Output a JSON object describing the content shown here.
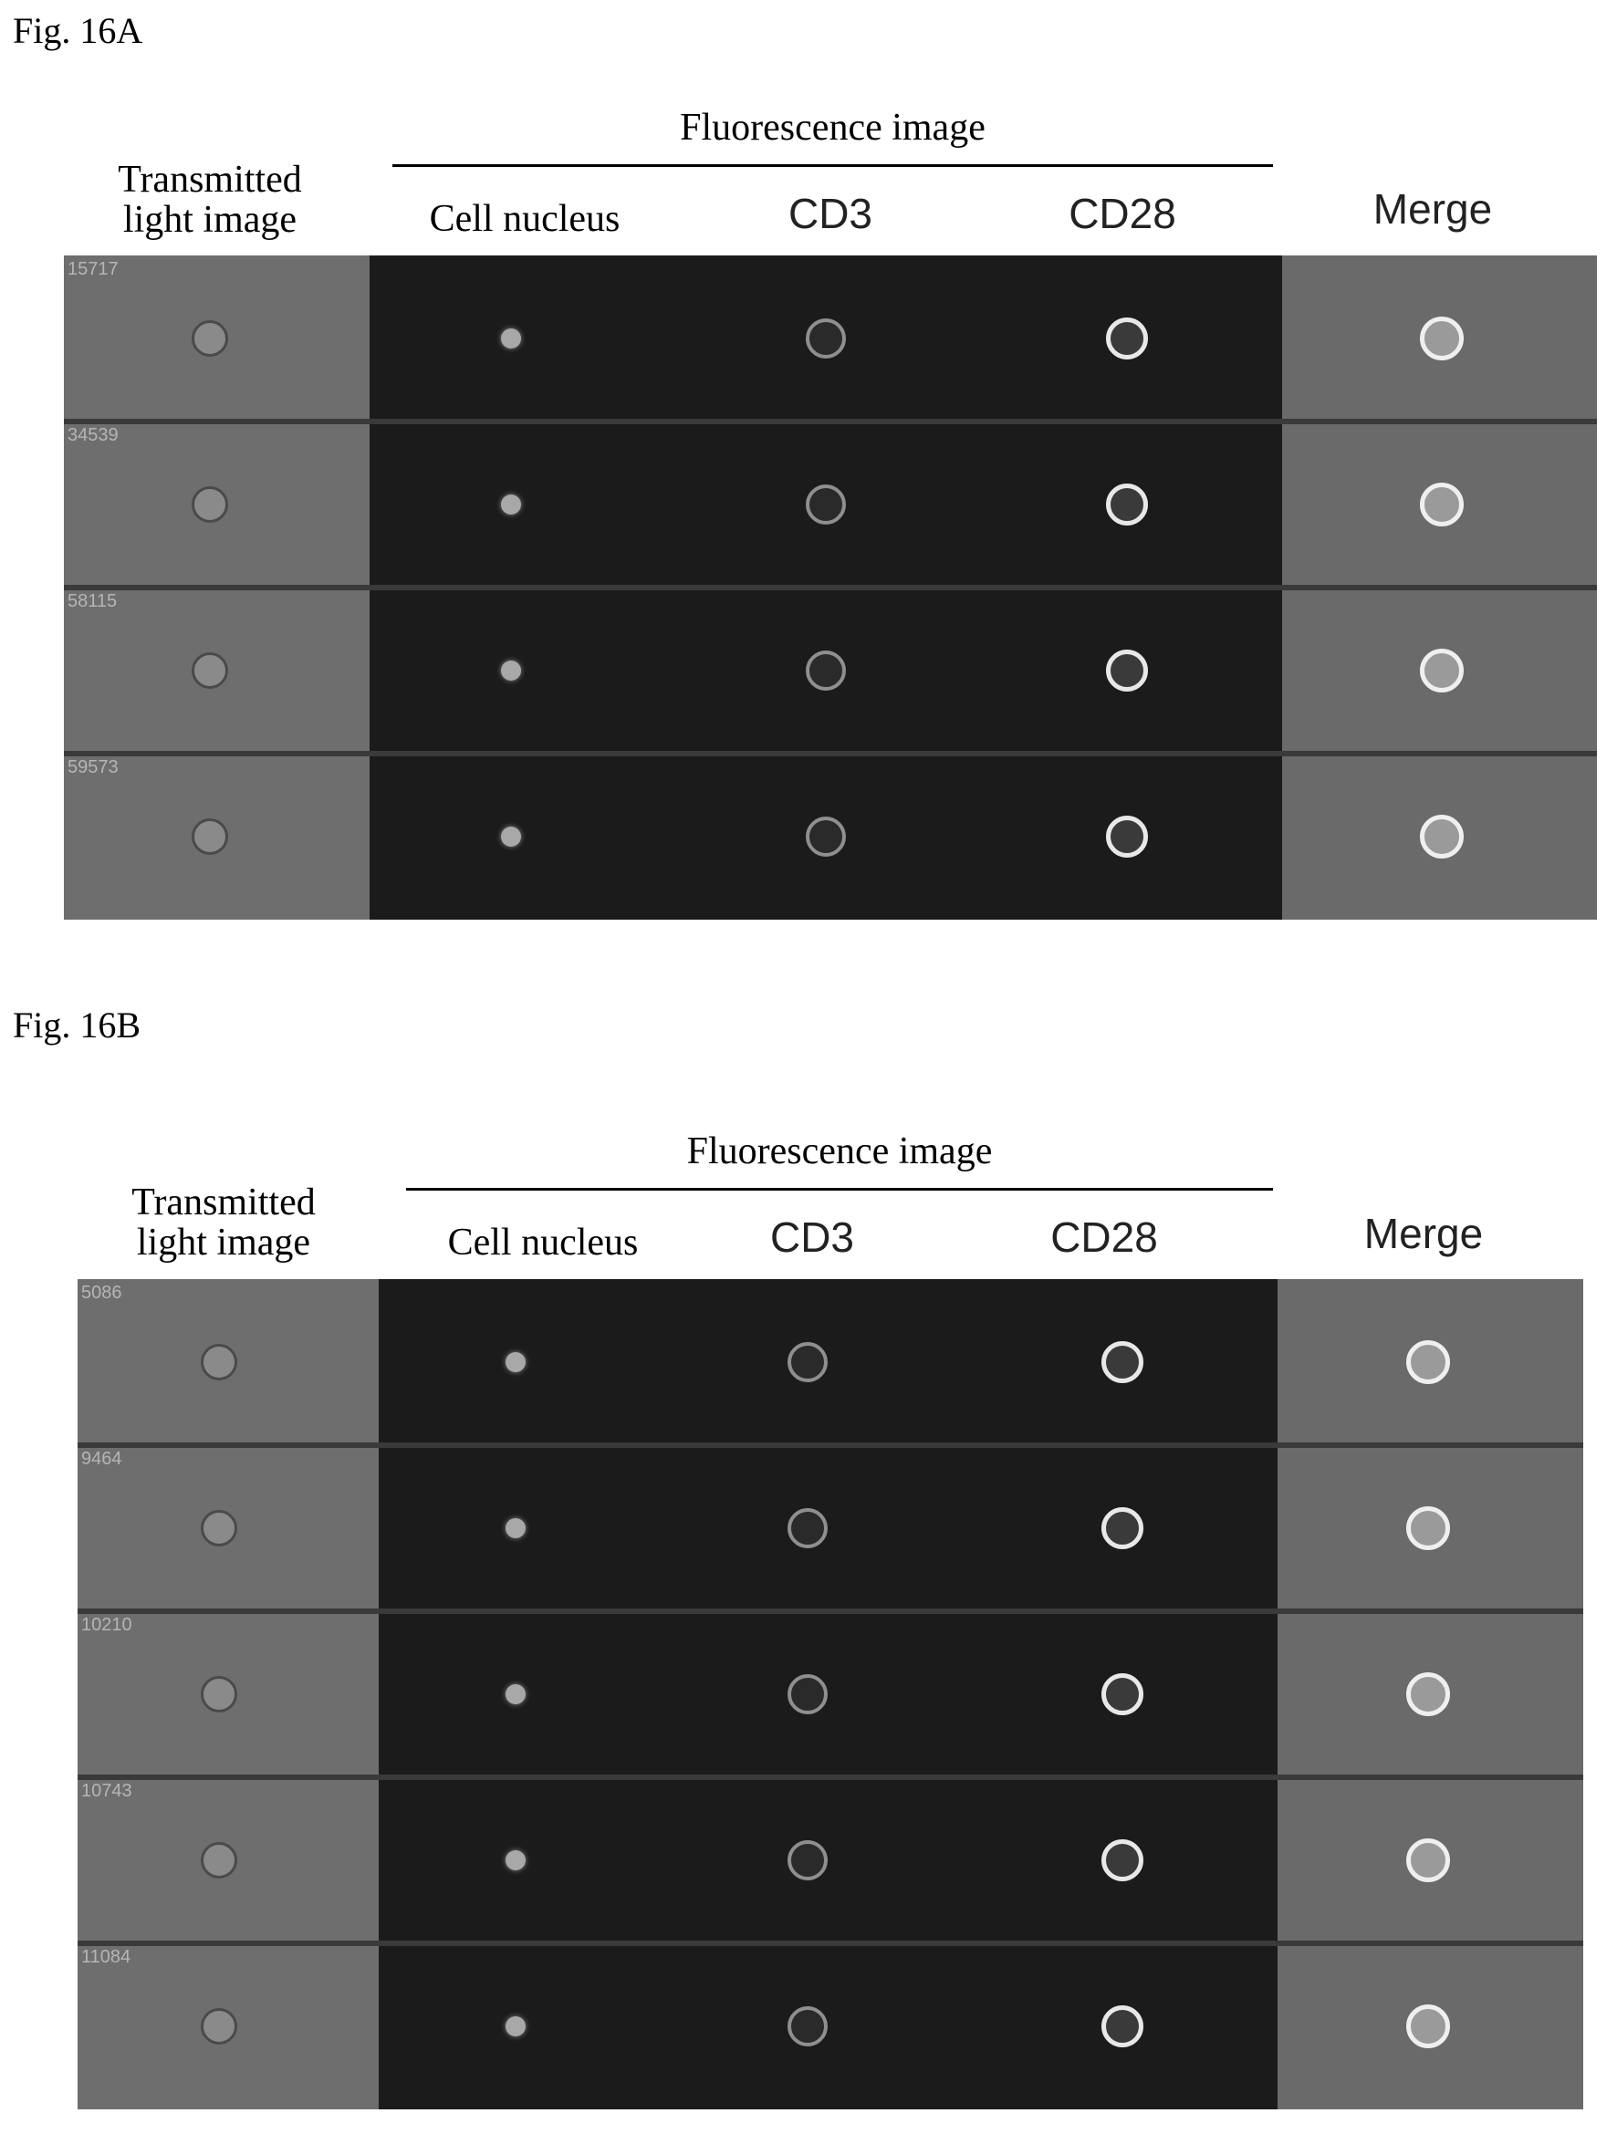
{
  "colors": {
    "transmitted_bg": "#6e6e6e",
    "fluorescence_bg": "#1b1b1b",
    "merge_bg": "#6a6a6a",
    "row_separator": "#3a3a3a"
  },
  "figures": [
    {
      "label": "Fig. 16A",
      "group_header": "Fluorescence image",
      "columns": {
        "transmitted": "Transmitted\nlight image",
        "nucleus": "Cell nucleus",
        "cd3": "CD3",
        "cd28": "CD28",
        "merge": "Merge"
      },
      "cell_ids": [
        "15717",
        "34539",
        "58115",
        "59573"
      ]
    },
    {
      "label": "Fig. 16B",
      "group_header": "Fluorescence image",
      "columns": {
        "transmitted": "Transmitted\nlight image",
        "nucleus": "Cell nucleus",
        "cd3": "CD3",
        "cd28": "CD28",
        "merge": "Merge"
      },
      "cell_ids": [
        "5086",
        "9464",
        "10210",
        "10743",
        "11084"
      ]
    }
  ]
}
